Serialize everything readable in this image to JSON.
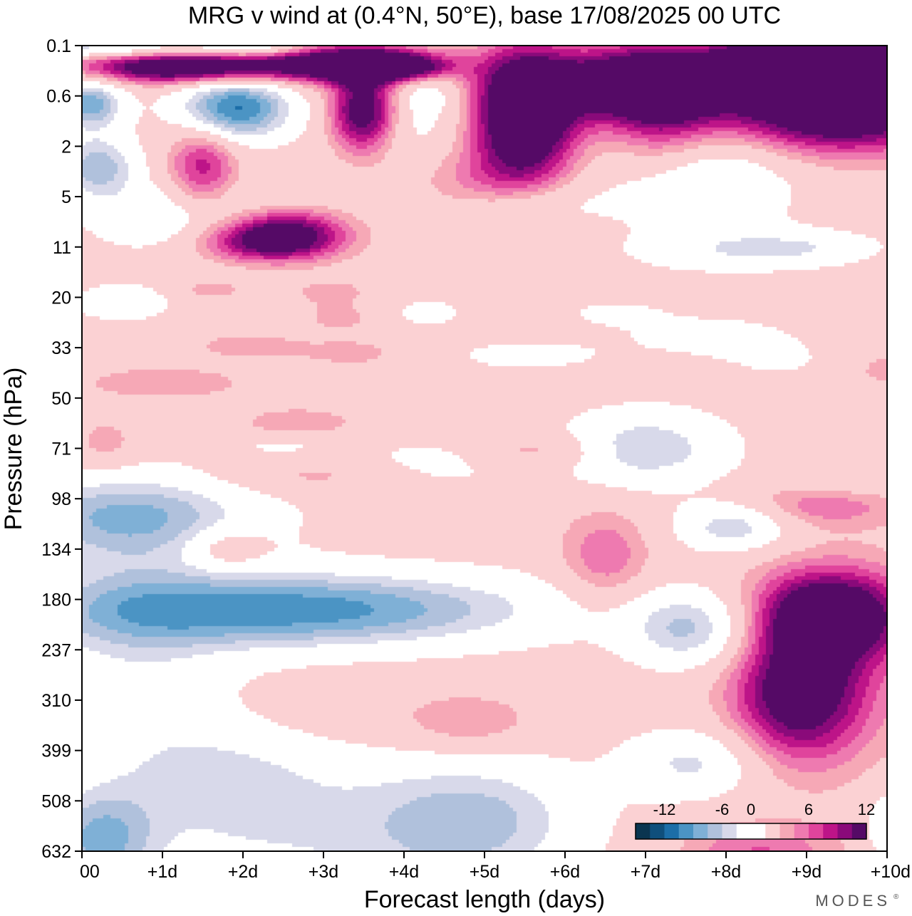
{
  "chart_data": {
    "type": "filled-contour",
    "title": "MRG v wind at (0.4°N, 50°E),  base 17/08/2025  00 UTC",
    "xlabel": "Forecast length (days)",
    "ylabel": "Pressure (hPa)",
    "x_ticks": [
      "00",
      "+1d",
      "+2d",
      "+3d",
      "+4d",
      "+5d",
      "+6d",
      "+7d",
      "+8d",
      "+9d",
      "+10d"
    ],
    "x_range_days": [
      0,
      10
    ],
    "y_ticks": [
      "0.1",
      "0.6",
      "2",
      "5",
      "11",
      "20",
      "33",
      "50",
      "71",
      "98",
      "134",
      "180",
      "237",
      "310",
      "399",
      "508",
      "632"
    ],
    "y_axis": "pressure (hPa), increasing downward",
    "colorbar": {
      "labels": [
        "-12",
        "-6",
        "0",
        "6",
        "12"
      ],
      "label_values": [
        -12,
        -6,
        0,
        6,
        12
      ],
      "levels": [
        -15,
        -13.5,
        -12,
        -10.5,
        -9,
        -7.5,
        -6,
        -4.5,
        -3,
        -1.5,
        1.5,
        3,
        4.5,
        6,
        7.5,
        9,
        10.5,
        12,
        13.5,
        15
      ],
      "colors": [
        "#0a3550",
        "#0f4f7c",
        "#1c6ea8",
        "#4b94c4",
        "#7fb0d6",
        "#b0c1dc",
        "#d8d9ea",
        "#ffffff",
        "#ffffff",
        "#fbd1d3",
        "#f6a8b6",
        "#ee7ab0",
        "#e0449c",
        "#bd1488",
        "#8a0a7a",
        "#550a66"
      ]
    },
    "features": [
      {
        "name": "upper stratosphere positive maxima",
        "days": [
          0.5,
          10
        ],
        "pressure_hPa": [
          0.1,
          5
        ],
        "peak_value": 15
      },
      {
        "name": "upper stratosphere negative cores",
        "days": [
          0,
          2.5
        ],
        "pressure_hPa": [
          0.1,
          5
        ],
        "peak_value": -12
      },
      {
        "name": "upper troposphere negative band",
        "days": [
          0.3,
          5.5
        ],
        "pressure_hPa": [
          150,
          300
        ],
        "peak_value": -9
      },
      {
        "name": "upper troposphere positive core",
        "days": [
          8.2,
          10
        ],
        "pressure_hPa": [
          150,
          450
        ],
        "peak_value": 12
      },
      {
        "name": "lower troposphere negative core",
        "days": [
          3.8,
          5.0
        ],
        "pressure_hPa": [
          508,
          632
        ],
        "peak_value": -9
      }
    ],
    "brand": "MODES"
  }
}
